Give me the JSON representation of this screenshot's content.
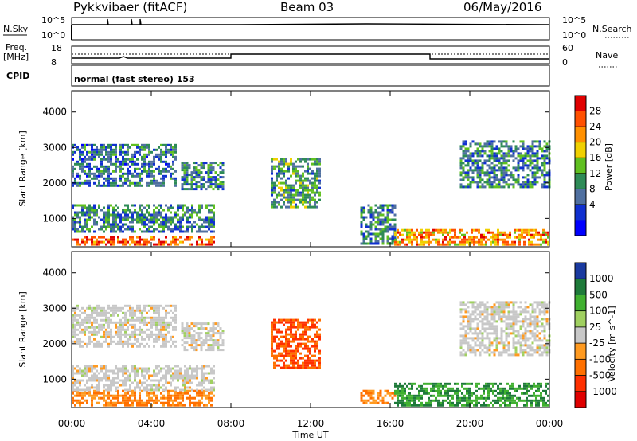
{
  "header": {
    "radar": "Pykkvibaer (fitACF)",
    "beam": "Beam 03",
    "date": "06/May/2016"
  },
  "strip": {
    "nsky_label": "N.Sky",
    "nsky_scale_top": "10^5",
    "nsky_scale_bottom": "10^0",
    "nsearch_label": "N.Search",
    "nsearch_scale_top": "10^5",
    "nsearch_scale_bottom": "10^0",
    "freq_label_1": "Freq.",
    "freq_label_2": "[MHz]",
    "freq_scale_top": "18",
    "freq_scale_bottom": "8",
    "nave_label": "Nave",
    "nave_scale_top": "60",
    "nave_scale_bottom": "0",
    "cpid_label": "CPID",
    "cpid_value": "normal (fast stereo) 153"
  },
  "axes": {
    "ylabel": "Slant Range [km]",
    "xlabel": "Time UT",
    "yticks": [
      "4000",
      "3000",
      "2000",
      "1000"
    ],
    "xticks": [
      "00:00",
      "04:00",
      "08:00",
      "12:00",
      "16:00",
      "20:00",
      "00:00"
    ]
  },
  "power_bar": {
    "label": "Power [dB]",
    "ticks": [
      "28",
      "24",
      "20",
      "16",
      "12",
      "8",
      "4"
    ],
    "colors": [
      "#e00000",
      "#ff5000",
      "#ff9000",
      "#f0d000",
      "#60c020",
      "#2e8b57",
      "#5070a0",
      "#1030d0",
      "#0000ff"
    ]
  },
  "velocity_bar": {
    "label": "Velocity [m s^-1]",
    "ticks": [
      "1000",
      "500",
      "100",
      "25",
      "-25",
      "-100",
      "-500",
      "-1000"
    ],
    "colors": [
      "#1a3aa0",
      "#1e7a3a",
      "#40b030",
      "#a0d060",
      "#c8c8c8",
      "#ff9a20",
      "#ff7000",
      "#ff3000",
      "#e00000"
    ]
  },
  "chart_data": [
    {
      "type": "heatmap",
      "title": "Power",
      "xlabel": "Time UT",
      "ylabel": "Slant Range [km]",
      "xlim": [
        "00:00",
        "24:00"
      ],
      "ylim": [
        200,
        4600
      ],
      "colorbar_label": "Power [dB]",
      "colorbar_range": [
        0,
        32
      ],
      "regions": [
        {
          "t_start": 0.0,
          "t_end": 7.2,
          "r_low": 250,
          "r_high": 500,
          "level": 28
        },
        {
          "t_start": 0.0,
          "t_end": 7.2,
          "r_low": 600,
          "r_high": 1400,
          "level": 10
        },
        {
          "t_start": 0.0,
          "t_end": 5.2,
          "r_low": 1900,
          "r_high": 3100,
          "level": 8
        },
        {
          "t_start": 5.5,
          "t_end": 7.6,
          "r_low": 1800,
          "r_high": 2600,
          "level": 10
        },
        {
          "t_start": 10.0,
          "t_end": 12.4,
          "r_low": 1300,
          "r_high": 2700,
          "level": 12
        },
        {
          "t_start": 14.5,
          "t_end": 16.2,
          "r_low": 300,
          "r_high": 1400,
          "level": 10
        },
        {
          "t_start": 16.2,
          "t_end": 24.0,
          "r_low": 250,
          "r_high": 700,
          "level": 24
        },
        {
          "t_start": 19.5,
          "t_end": 24.0,
          "r_low": 1900,
          "r_high": 3200,
          "level": 10
        }
      ]
    },
    {
      "type": "heatmap",
      "title": "Velocity",
      "xlabel": "Time UT",
      "ylabel": "Slant Range [km]",
      "xlim": [
        "00:00",
        "24:00"
      ],
      "ylim": [
        200,
        4600
      ],
      "colorbar_label": "Velocity [m s^-1]",
      "colorbar_range": [
        -1000,
        1000
      ],
      "regions": [
        {
          "t_start": 0.0,
          "t_end": 7.2,
          "r_low": 250,
          "r_high": 700,
          "level": -100
        },
        {
          "t_start": 0.0,
          "t_end": 7.2,
          "r_low": 700,
          "r_high": 1400,
          "level": 0
        },
        {
          "t_start": 0.0,
          "t_end": 5.2,
          "r_low": 1900,
          "r_high": 3100,
          "level": 0
        },
        {
          "t_start": 5.5,
          "t_end": 7.6,
          "r_low": 1800,
          "r_high": 2600,
          "level": 0
        },
        {
          "t_start": 10.0,
          "t_end": 12.4,
          "r_low": 1300,
          "r_high": 2700,
          "level": -500
        },
        {
          "t_start": 14.5,
          "t_end": 16.2,
          "r_low": 300,
          "r_high": 700,
          "level": -100
        },
        {
          "t_start": 16.2,
          "t_end": 24.0,
          "r_low": 250,
          "r_high": 900,
          "level": 500
        },
        {
          "t_start": 19.5,
          "t_end": 24.0,
          "r_low": 1700,
          "r_high": 3200,
          "level": 0
        }
      ]
    }
  ]
}
